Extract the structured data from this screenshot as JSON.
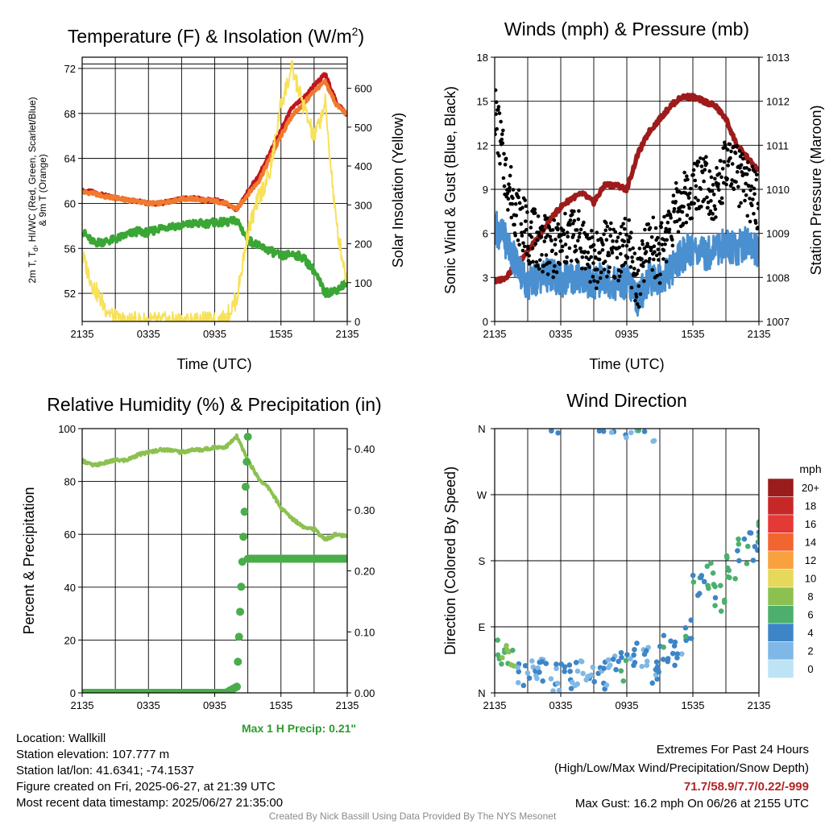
{
  "panels": {
    "temperature": {
      "title": "Temperature (F) & Insolation (W/m",
      "title_sup": "2",
      "title_end": ")",
      "ylabel_left_lines": [
        "2m T, T",
        "d",
        ", HI/WC (Red, Green, Scarlet/Blue)",
        "& 9m T (Orange)"
      ],
      "ylabel_right": "Solar Insolation (Yellow)",
      "xlabel": "Time (UTC)"
    },
    "winds": {
      "title": "Winds (mph) & Pressure (mb)",
      "ylabel_left": "Sonic Wind & Gust (Blue, Black)",
      "ylabel_right": "Station Pressure (Maroon)",
      "xlabel": "Time (UTC)"
    },
    "rh": {
      "title": "Relative Humidity (%) & Precipitation (in)",
      "ylabel_left": "Percent & Precipitation",
      "max_precip_note": "Max 1 H Precip: 0.21\""
    },
    "wind_direction": {
      "title": "Wind Direction",
      "ylabel_left": "Direction (Colored By Speed)",
      "colorbar_title": "mph",
      "colorbar_labels": [
        "20+",
        "18",
        "16",
        "14",
        "12",
        "10",
        "8",
        "6",
        "4",
        "2",
        "0"
      ],
      "colorbar_colors": [
        "#9b1c1c",
        "#c62828",
        "#e53935",
        "#f26430",
        "#f9a03f",
        "#e6d85a",
        "#8cc152",
        "#4caf6e",
        "#3d85c6",
        "#7fb8e6",
        "#bde3f7"
      ]
    }
  },
  "info": {
    "location": "Location: Wallkill",
    "elevation": "Station elevation: 107.777 m",
    "latlon": "Station lat/lon: 41.6341; -74.1537",
    "created": "Figure created on Fri, 2025-06-27, at 21:39 UTC",
    "recent": "Most recent data timestamp: 2025/06/27 21:35:00"
  },
  "extremes": {
    "title": "Extremes For Past 24 Hours",
    "subtitle": "(High/Low/Max Wind/Precipitation/Snow Depth)",
    "values": "71.7/58.9/7.7/0.22/-999",
    "max_gust": "Max Gust: 16.2 mph On 06/26 at 2155 UTC"
  },
  "credit": "Created By Nick Bassill Using Data Provided By The NYS Mesonet",
  "chart_data": [
    {
      "type": "line",
      "title": "Temperature (F) & Insolation (W/m2)",
      "xlabel": "Time (UTC)",
      "x_ticks": [
        "2135",
        "0335",
        "0935",
        "1535",
        "2135"
      ],
      "x": [
        0,
        1,
        2,
        3,
        4,
        5,
        6,
        7,
        8,
        9,
        10,
        11,
        12,
        13,
        14,
        15,
        16,
        17,
        18,
        19,
        20,
        21,
        22,
        23,
        24
      ],
      "ylim_left": [
        49.5,
        73
      ],
      "yticks_left": [
        52,
        56,
        60,
        64,
        68,
        72
      ],
      "ylim_right": [
        0,
        680
      ],
      "yticks_right": [
        0,
        100,
        200,
        300,
        400,
        500,
        600
      ],
      "series": [
        {
          "name": "2m T (Red)",
          "color": "#c0161c",
          "axis": "left",
          "values": [
            61.1,
            61.0,
            60.7,
            60.5,
            60.4,
            60.2,
            60.0,
            60.0,
            60.2,
            60.4,
            60.5,
            60.3,
            60.3,
            60.0,
            59.4,
            61.0,
            62.5,
            64.5,
            66.5,
            68.5,
            69.3,
            70.5,
            71.5,
            69.0,
            67.9
          ]
        },
        {
          "name": "9m T (Orange)",
          "color": "#f07a2e",
          "axis": "left",
          "values": [
            61.0,
            60.9,
            60.6,
            60.5,
            60.3,
            60.2,
            60.0,
            60.0,
            60.2,
            60.4,
            60.4,
            60.3,
            60.2,
            60.0,
            59.5,
            60.8,
            62.0,
            64.0,
            66.0,
            67.8,
            68.8,
            70.0,
            70.8,
            68.8,
            67.9
          ]
        },
        {
          "name": "Td (Green)",
          "color": "#3aa635",
          "axis": "left",
          "values": [
            57.5,
            56.5,
            56.6,
            56.8,
            57.2,
            57.5,
            57.4,
            57.8,
            58.0,
            58.0,
            58.2,
            58.2,
            58.3,
            58.3,
            58.5,
            56.8,
            56.2,
            55.8,
            55.3,
            55.5,
            55.2,
            54.0,
            52.0,
            52.3,
            53.0
          ]
        },
        {
          "name": "Solar Insolation (Yellow)",
          "color": "#f7e15a",
          "axis": "right",
          "values": [
            170,
            90,
            40,
            5,
            0,
            0,
            0,
            0,
            0,
            0,
            0,
            0,
            0,
            5,
            60,
            230,
            320,
            380,
            560,
            650,
            560,
            470,
            560,
            250,
            100
          ]
        }
      ]
    },
    {
      "type": "line",
      "title": "Winds (mph) & Pressure (mb)",
      "xlabel": "Time (UTC)",
      "x_ticks": [
        "2135",
        "0335",
        "0935",
        "1535",
        "2135"
      ],
      "x": [
        0,
        1,
        2,
        3,
        4,
        5,
        6,
        7,
        8,
        9,
        10,
        11,
        12,
        13,
        14,
        15,
        16,
        17,
        18,
        19,
        20,
        21,
        22,
        23,
        24
      ],
      "ylim_left": [
        0,
        18
      ],
      "yticks_left": [
        0,
        3,
        6,
        9,
        12,
        15,
        18
      ],
      "ylim_right": [
        1007,
        1013
      ],
      "yticks_right": [
        1007,
        1008,
        1009,
        1010,
        1011,
        1012,
        1013
      ],
      "series": [
        {
          "name": "Station Pressure (Maroon)",
          "color": "#9e1b1b",
          "axis": "right",
          "values": [
            1007.9,
            1008.0,
            1008.3,
            1008.6,
            1008.9,
            1009.3,
            1009.6,
            1009.8,
            1009.9,
            1009.7,
            1010.1,
            1010.1,
            1010.0,
            1010.8,
            1011.3,
            1011.6,
            1011.9,
            1012.1,
            1012.1,
            1012.0,
            1011.9,
            1011.6,
            1011.0,
            1010.7,
            1010.4
          ]
        },
        {
          "name": "Sonic Wind (Blue)",
          "color": "#4a8fcf",
          "axis": "left",
          "values": [
            6.5,
            5.5,
            4.0,
            2.5,
            3.0,
            3.2,
            2.8,
            3.0,
            3.0,
            2.5,
            3.0,
            2.5,
            2.8,
            1.5,
            3.0,
            2.8,
            3.5,
            4.5,
            5.0,
            4.5,
            5.0,
            5.2,
            5.0,
            5.5,
            4.5
          ]
        },
        {
          "name": "Gust (Black)",
          "color": "#000000",
          "axis": "left",
          "values": [
            14.5,
            10.0,
            7.5,
            6.0,
            5.5,
            5.0,
            5.0,
            6.0,
            5.5,
            4.0,
            5.0,
            4.5,
            5.5,
            2.5,
            5.5,
            4.5,
            7.0,
            8.0,
            9.0,
            10.0,
            8.5,
            10.5,
            10.0,
            9.0,
            8.0
          ]
        }
      ]
    },
    {
      "type": "line",
      "title": "Relative Humidity (%) & Precipitation (in)",
      "x_ticks": [
        "2135",
        "0335",
        "0935",
        "1535",
        "2135"
      ],
      "x": [
        0,
        1,
        2,
        3,
        4,
        5,
        6,
        7,
        8,
        9,
        10,
        11,
        12,
        13,
        14,
        15,
        16,
        17,
        18,
        19,
        20,
        21,
        22,
        23,
        24
      ],
      "ylim_left": [
        0,
        100
      ],
      "yticks_left": [
        0,
        20,
        40,
        60,
        80,
        100
      ],
      "ylim_right": [
        0,
        0.4333
      ],
      "yticks_right": [
        0.0,
        0.1,
        0.2,
        0.3,
        0.4
      ],
      "series": [
        {
          "name": "Relative Humidity",
          "color": "#8cc152",
          "axis": "left",
          "values": [
            88,
            86,
            87,
            88,
            88,
            90,
            91,
            92,
            92,
            91,
            92,
            92,
            93,
            93,
            97,
            88,
            81,
            77,
            70,
            66,
            63,
            62,
            58,
            60,
            59
          ]
        },
        {
          "name": "Precipitation",
          "color": "#4aad4a",
          "axis": "right",
          "marker": "circle",
          "values": [
            0,
            0,
            0,
            0,
            0,
            0,
            0,
            0,
            0,
            0,
            0,
            0,
            0,
            0,
            0.01,
            0.22,
            0.22,
            0.22,
            0.22,
            0.22,
            0.22,
            0.22,
            0.22,
            0.22,
            0.22
          ]
        }
      ]
    },
    {
      "type": "scatter",
      "title": "Wind Direction",
      "x_ticks": [
        "2135",
        "0335",
        "0935",
        "1535",
        "2135"
      ],
      "y_ticks": [
        "N",
        "E",
        "S",
        "W",
        "N"
      ],
      "ylim": [
        0,
        360
      ],
      "x": [
        0,
        1,
        2,
        3,
        4,
        5,
        6,
        7,
        8,
        9,
        10,
        11,
        12,
        13,
        14,
        15,
        16,
        17,
        18,
        19,
        20,
        21,
        22,
        23,
        24
      ],
      "series": [
        {
          "name": "Direction",
          "values": [
            55,
            45,
            30,
            25,
            30,
            20,
            25,
            30,
            20,
            25,
            30,
            35,
            50,
            55,
            30,
            60,
            55,
            90,
            150,
            160,
            130,
            175,
            190,
            200,
            215
          ],
          "speeds": [
            6,
            7,
            3,
            2,
            3,
            2,
            3,
            2,
            2,
            3,
            2,
            4,
            3,
            2,
            3,
            4,
            3,
            4,
            4,
            5,
            5,
            5,
            5,
            4,
            5
          ]
        },
        {
          "name": "Northerly",
          "values": [
            null,
            null,
            null,
            null,
            null,
            355,
            null,
            null,
            null,
            357,
            355,
            350,
            357,
            357,
            345,
            null,
            null,
            null,
            null,
            null,
            null,
            null,
            null,
            null,
            null
          ],
          "speeds": [
            null,
            null,
            null,
            null,
            null,
            3,
            null,
            null,
            null,
            3,
            3,
            2,
            2,
            4,
            1,
            null,
            null,
            null,
            null,
            null,
            null,
            null,
            null,
            null,
            null
          ]
        }
      ]
    }
  ]
}
